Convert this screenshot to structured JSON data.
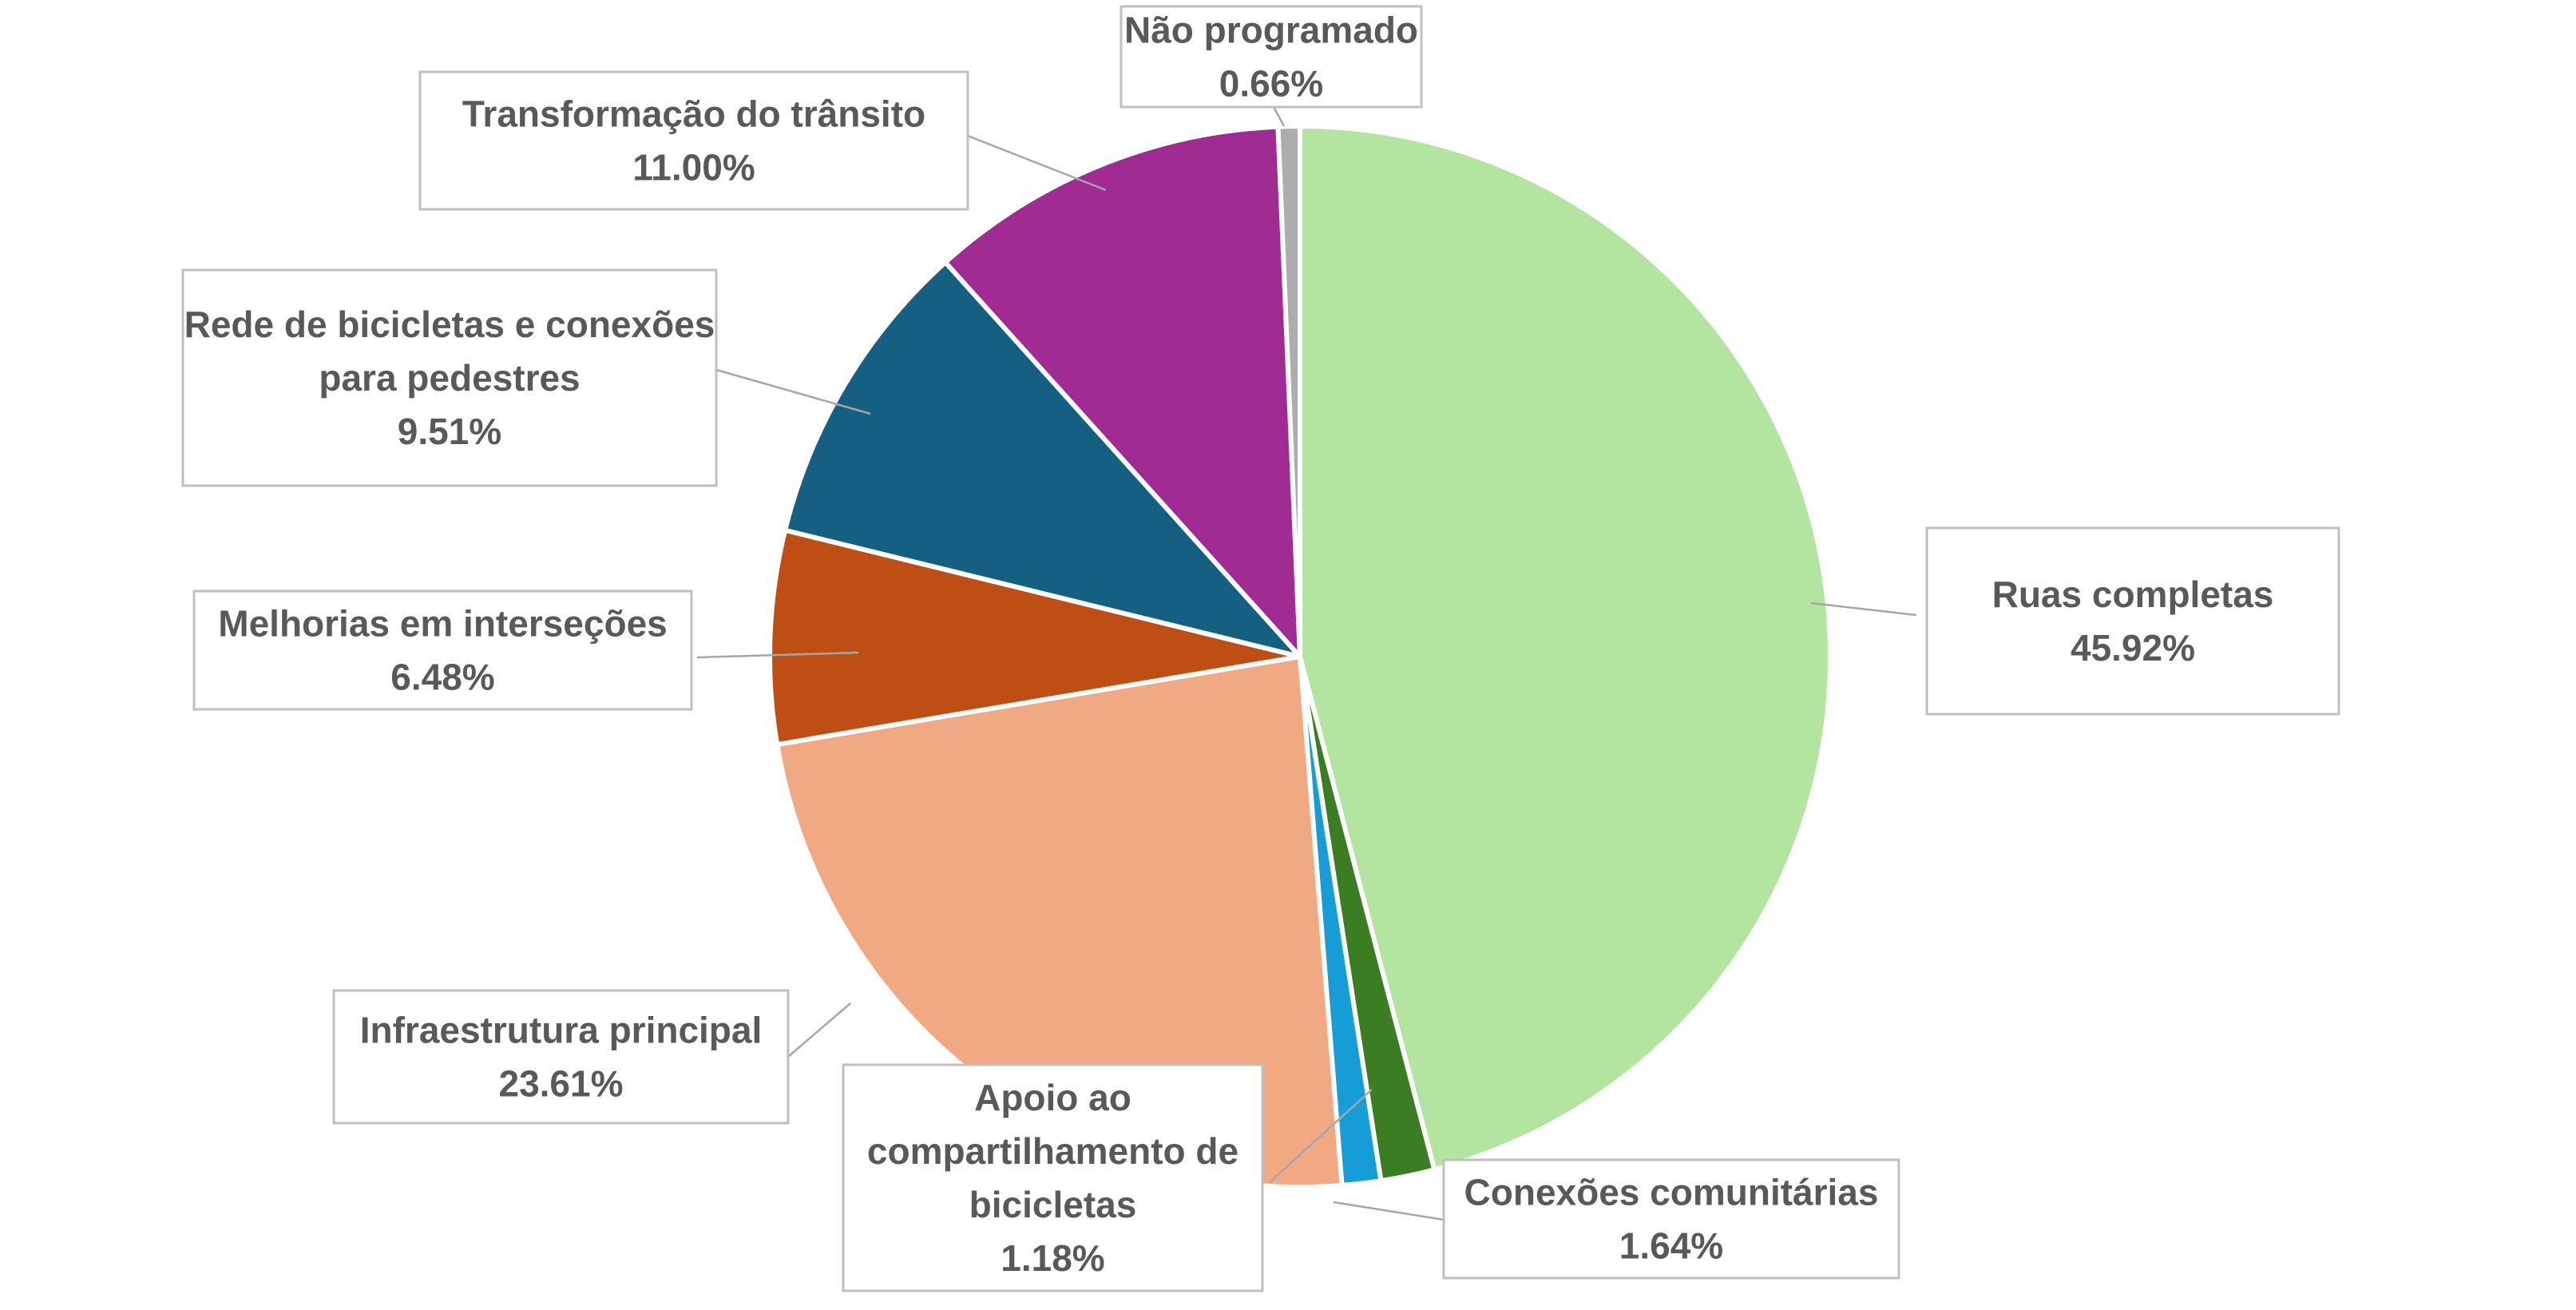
{
  "chart_data": {
    "type": "pie",
    "title": "",
    "start_angle_deg": 0,
    "direction": "clockwise",
    "slices": [
      {
        "name": "Ruas completas",
        "value": 45.92,
        "label": "45.92%",
        "color": "#b3e5a1"
      },
      {
        "name": "Conexões comunitárias",
        "value": 1.64,
        "label": "1.64%",
        "color": "#3a7d22"
      },
      {
        "name": "Apoio ao compartilhamento de bicicletas",
        "value": 1.18,
        "label": "1.18%",
        "color": "#169dd8"
      },
      {
        "name": "Infraestrutura principal",
        "value": 23.61,
        "label": "23.61%",
        "color": "#f1a983"
      },
      {
        "name": "Melhorias em interseções",
        "value": 6.48,
        "label": "6.48%",
        "color": "#bf4e14"
      },
      {
        "name": "Rede de bicicletas e conexões para pedestres",
        "value": 9.51,
        "label": "9.51%",
        "color": "#156082"
      },
      {
        "name": "Transformação do trânsito",
        "value": 11.0,
        "label": "11.00%",
        "color": "#a02b93"
      },
      {
        "name": "Não programado",
        "value": 0.66,
        "label": "0.66%",
        "color": "#adadad"
      }
    ],
    "legend": "none",
    "data_labels": "callout boxes with category name and percentage"
  }
}
